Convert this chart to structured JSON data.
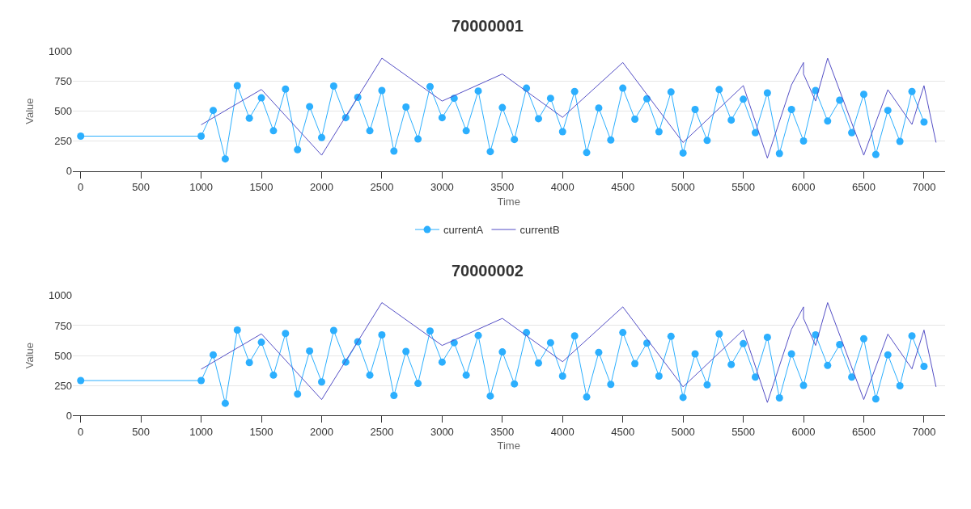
{
  "chart_data": [
    {
      "type": "line",
      "title": "70000001",
      "xlabel": "Time",
      "ylabel": "Value",
      "xlim": [
        -66,
        7172
      ],
      "xticks": [
        0,
        500,
        1000,
        1500,
        2000,
        2500,
        3000,
        3500,
        4000,
        4500,
        5000,
        5500,
        6000,
        6500,
        7000
      ],
      "ylim": [
        0,
        1000
      ],
      "yticks": [
        0,
        250,
        500,
        750,
        1000
      ],
      "grid": "y",
      "legend": "bottom",
      "series": [
        {
          "name": "currentA",
          "color": "#2caffe",
          "marker": "circle",
          "x": [
            0,
            1000,
            1100,
            1200,
            1300,
            1400,
            1500,
            1600,
            1700,
            1800,
            1900,
            2000,
            2100,
            2200,
            2300,
            2400,
            2500,
            2600,
            2700,
            2800,
            2900,
            3000,
            3100,
            3200,
            3300,
            3400,
            3500,
            3600,
            3700,
            3800,
            3900,
            4000,
            4100,
            4200,
            4300,
            4400,
            4500,
            4600,
            4700,
            4800,
            4900,
            5000,
            5100,
            5200,
            5300,
            5400,
            5500,
            5600,
            5700,
            5800,
            5900,
            6000,
            6100,
            6200,
            6300,
            6400,
            6500,
            6600,
            6700,
            6800,
            6900,
            7000
          ],
          "values": [
            291,
            291,
            506,
            101,
            713,
            441,
            611,
            336,
            684,
            178,
            538,
            279,
            709,
            445,
            615,
            336,
            672,
            166,
            534,
            267,
            704,
            445,
            607,
            336,
            668,
            162,
            530,
            263,
            692,
            437,
            607,
            328,
            664,
            154,
            526,
            259,
            692,
            433,
            603,
            328,
            660,
            150,
            514,
            255,
            680,
            425,
            599,
            320,
            652,
            146,
            514,
            251,
            672,
            417,
            591,
            320,
            640,
            138,
            506,
            247,
            664,
            409
          ]
        },
        {
          "name": "currentB",
          "color": "#544fc5",
          "marker": "none",
          "x": [
            1000,
            1500,
            2000,
            2500,
            3000,
            3500,
            4000,
            4500,
            5000,
            5500,
            5700,
            5900,
            6000,
            6000,
            6100,
            6200,
            6500,
            6700,
            6900,
            7000,
            7100
          ],
          "values": [
            386,
            681,
            132,
            942,
            584,
            810,
            448,
            906,
            238,
            713,
            108,
            719,
            906,
            810,
            584,
            942,
            132,
            679,
            389,
            713,
            238
          ]
        }
      ]
    },
    {
      "type": "line",
      "title": "70000002",
      "xlabel": "Time",
      "ylabel": "Value",
      "xlim": [
        -66,
        7172
      ],
      "xticks": [
        0,
        500,
        1000,
        1500,
        2000,
        2500,
        3000,
        3500,
        4000,
        4500,
        5000,
        5500,
        6000,
        6500,
        7000
      ],
      "ylim": [
        0,
        1000
      ],
      "yticks": [
        0,
        250,
        500,
        750,
        1000
      ],
      "grid": "y",
      "series": [
        {
          "color": "#2caffe",
          "marker": "circle",
          "x": [
            0,
            1000,
            1100,
            1200,
            1300,
            1400,
            1500,
            1600,
            1700,
            1800,
            1900,
            2000,
            2100,
            2200,
            2300,
            2400,
            2500,
            2600,
            2700,
            2800,
            2900,
            3000,
            3100,
            3200,
            3300,
            3400,
            3500,
            3600,
            3700,
            3800,
            3900,
            4000,
            4100,
            4200,
            4300,
            4400,
            4500,
            4600,
            4700,
            4800,
            4900,
            5000,
            5100,
            5200,
            5300,
            5400,
            5500,
            5600,
            5700,
            5800,
            5900,
            6000,
            6100,
            6200,
            6300,
            6400,
            6500,
            6600,
            6700,
            6800,
            6900,
            7000
          ],
          "values": [
            291,
            291,
            506,
            101,
            713,
            441,
            611,
            336,
            684,
            178,
            538,
            279,
            709,
            445,
            615,
            336,
            672,
            166,
            534,
            267,
            704,
            445,
            607,
            336,
            668,
            162,
            530,
            263,
            692,
            437,
            607,
            328,
            664,
            154,
            526,
            259,
            692,
            433,
            603,
            328,
            660,
            150,
            514,
            255,
            680,
            425,
            599,
            320,
            652,
            146,
            514,
            251,
            672,
            417,
            591,
            320,
            640,
            138,
            506,
            247,
            664,
            409
          ]
        },
        {
          "color": "#544fc5",
          "marker": "none",
          "x": [
            1000,
            1500,
            2000,
            2500,
            3000,
            3500,
            4000,
            4500,
            5000,
            5500,
            5700,
            5900,
            6000,
            6000,
            6100,
            6200,
            6500,
            6700,
            6900,
            7000,
            7100
          ],
          "values": [
            386,
            681,
            132,
            942,
            584,
            810,
            448,
            906,
            238,
            713,
            108,
            719,
            906,
            810,
            584,
            942,
            132,
            679,
            389,
            713,
            238
          ]
        }
      ]
    }
  ]
}
